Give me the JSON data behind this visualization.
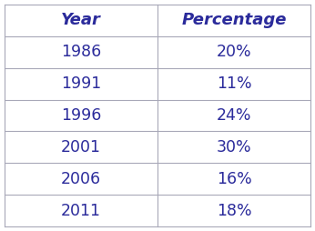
{
  "headers": [
    "Year",
    "Percentage"
  ],
  "rows": [
    [
      "1986",
      "20%"
    ],
    [
      "1991",
      "11%"
    ],
    [
      "1996",
      "24%"
    ],
    [
      "2001",
      "30%"
    ],
    [
      "2006",
      "16%"
    ],
    [
      "2011",
      "18%"
    ]
  ],
  "text_color": "#2B2B9B",
  "line_color": "#A8A8B8",
  "background_color": "#FFFFFF",
  "font_size": 12.5,
  "header_font_size": 13
}
